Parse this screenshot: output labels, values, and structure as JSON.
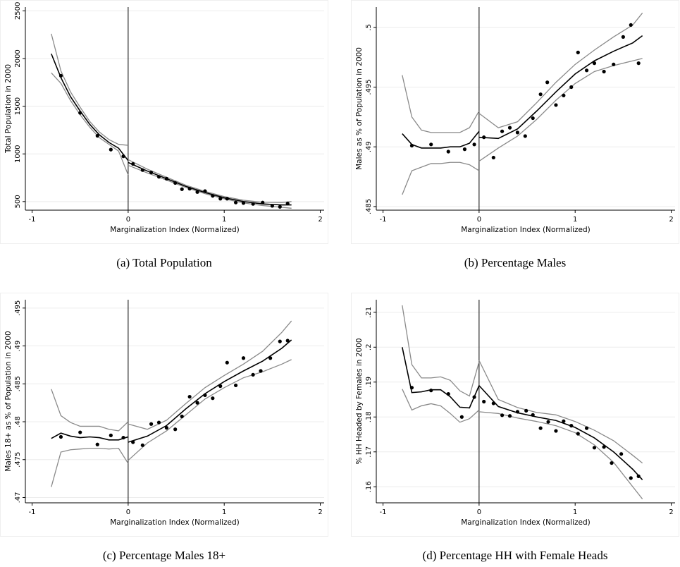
{
  "chart_data": [
    {
      "type": "rd",
      "caption": "(a)  Total Population",
      "xlabel": "Marginalization Index (Normalized)",
      "ylabel": "Total Population in 2000",
      "xlim": [
        -1.07,
        2.04
      ],
      "xticks": [
        -1,
        0,
        1,
        2
      ],
      "ylim": [
        410,
        2540
      ],
      "yticks": [
        500,
        1000,
        1500,
        2000,
        2500
      ],
      "grid": true,
      "cutoff": 0,
      "point_color": "#000000",
      "fit_color": "#000000",
      "ci_color": "#8a8a8a",
      "points": {
        "x": [
          -0.7,
          -0.5,
          -0.32,
          -0.18,
          -0.05,
          0.05,
          0.15,
          0.24,
          0.32,
          0.4,
          0.49,
          0.56,
          0.64,
          0.72,
          0.8,
          0.88,
          0.96,
          1.03,
          1.12,
          1.2,
          1.3,
          1.4,
          1.5,
          1.58,
          1.66
        ],
        "values": [
          1820,
          1430,
          1190,
          1045,
          975,
          895,
          830,
          805,
          760,
          740,
          695,
          630,
          635,
          600,
          610,
          560,
          530,
          530,
          490,
          485,
          475,
          490,
          455,
          445,
          480
        ]
      },
      "fit": [
        {
          "x": [
            -0.8,
            -0.7,
            -0.6,
            -0.5,
            -0.4,
            -0.3,
            -0.2,
            -0.1,
            0
          ],
          "values": [
            2050,
            1800,
            1600,
            1450,
            1310,
            1200,
            1120,
            1060,
            930
          ],
          "lower": [
            1850,
            1740,
            1560,
            1410,
            1280,
            1170,
            1100,
            1030,
            780
          ],
          "upper": [
            2260,
            1870,
            1650,
            1490,
            1340,
            1230,
            1150,
            1100,
            1090
          ]
        },
        {
          "x": [
            0,
            0.2,
            0.4,
            0.6,
            0.8,
            1.0,
            1.2,
            1.4,
            1.6,
            1.7
          ],
          "values": [
            910,
            820,
            740,
            660,
            595,
            540,
            500,
            475,
            465,
            465
          ],
          "lower": [
            880,
            800,
            725,
            648,
            583,
            528,
            486,
            458,
            440,
            430
          ],
          "upper": [
            940,
            840,
            755,
            672,
            607,
            552,
            514,
            492,
            490,
            500
          ]
        }
      ]
    },
    {
      "type": "rd",
      "caption": "(b)  Percentage Males",
      "xlabel": "Marginalization Index (Normalized)",
      "ylabel": "Males as % of Population in 2000",
      "xlim": [
        -1.07,
        2.04
      ],
      "xticks": [
        -1,
        0,
        1,
        2
      ],
      "ylim": [
        0.4847,
        0.5017
      ],
      "yticks": [
        {
          "value": 0.485,
          "label": ".485"
        },
        {
          "value": 0.49,
          "label": ".49"
        },
        {
          "value": 0.495,
          "label": ".495"
        },
        {
          "value": 0.5,
          "label": ".5"
        }
      ],
      "grid": true,
      "cutoff": 0,
      "point_color": "#000000",
      "fit_color": "#000000",
      "ci_color": "#8a8a8a",
      "points": {
        "x": [
          -0.7,
          -0.5,
          -0.32,
          -0.15,
          -0.05,
          0.05,
          0.15,
          0.24,
          0.32,
          0.4,
          0.48,
          0.56,
          0.64,
          0.71,
          0.8,
          0.88,
          0.96,
          1.03,
          1.12,
          1.2,
          1.3,
          1.4,
          1.5,
          1.58,
          1.66
        ],
        "values": [
          0.4901,
          0.4902,
          0.4896,
          0.4898,
          0.4902,
          0.4908,
          0.4891,
          0.4913,
          0.4916,
          0.4912,
          0.4909,
          0.4924,
          0.4944,
          0.4954,
          0.4935,
          0.4943,
          0.495,
          0.4979,
          0.4964,
          0.497,
          0.4963,
          0.4969,
          0.4992,
          0.5002,
          0.497
        ]
      },
      "fit": [
        {
          "x": [
            -0.8,
            -0.7,
            -0.6,
            -0.5,
            -0.4,
            -0.3,
            -0.2,
            -0.1,
            0
          ],
          "values": [
            0.4911,
            0.4902,
            0.4899,
            0.4899,
            0.4899,
            0.49,
            0.49,
            0.4903,
            0.4913
          ],
          "lower": [
            0.486,
            0.488,
            0.4883,
            0.4886,
            0.4886,
            0.4887,
            0.4887,
            0.4885,
            0.488
          ],
          "upper": [
            0.496,
            0.4925,
            0.4914,
            0.4912,
            0.4912,
            0.4912,
            0.4912,
            0.4916,
            0.493
          ]
        },
        {
          "x": [
            0,
            0.2,
            0.4,
            0.6,
            0.8,
            1.0,
            1.2,
            1.4,
            1.6,
            1.7
          ],
          "values": [
            0.4908,
            0.4907,
            0.4915,
            0.493,
            0.4946,
            0.4961,
            0.4972,
            0.498,
            0.4987,
            0.4993
          ],
          "lower": [
            0.4888,
            0.4899,
            0.4909,
            0.4923,
            0.4939,
            0.4953,
            0.4963,
            0.4968,
            0.4972,
            0.4974
          ],
          "upper": [
            0.4928,
            0.4916,
            0.4921,
            0.4937,
            0.4954,
            0.4969,
            0.4981,
            0.4992,
            0.5002,
            0.5012
          ]
        }
      ]
    },
    {
      "type": "rd",
      "caption": "(c)  Percentage Males 18+",
      "xlabel": "Marginalization Index (Normalized)",
      "ylabel": "Males 18+ as % of Population in 2000",
      "xlim": [
        -1.07,
        2.04
      ],
      "xticks": [
        -1,
        0,
        1,
        2
      ],
      "ylim": [
        0.4693,
        0.4961
      ],
      "yticks": [
        {
          "value": 0.47,
          "label": ".47"
        },
        {
          "value": 0.475,
          "label": ".475"
        },
        {
          "value": 0.48,
          "label": ".48"
        },
        {
          "value": 0.485,
          "label": ".485"
        },
        {
          "value": 0.49,
          "label": ".49"
        },
        {
          "value": 0.495,
          "label": ".495"
        }
      ],
      "grid": true,
      "cutoff": 0,
      "point_color": "#000000",
      "fit_color": "#000000",
      "ci_color": "#8a8a8a",
      "points": {
        "x": [
          -0.7,
          -0.5,
          -0.32,
          -0.18,
          -0.05,
          0.05,
          0.15,
          0.24,
          0.32,
          0.4,
          0.49,
          0.56,
          0.64,
          0.72,
          0.8,
          0.88,
          0.96,
          1.03,
          1.12,
          1.2,
          1.3,
          1.38,
          1.48,
          1.58,
          1.66
        ],
        "values": [
          0.478,
          0.4786,
          0.477,
          0.4782,
          0.4779,
          0.4773,
          0.4769,
          0.4797,
          0.4799,
          0.4792,
          0.479,
          0.4807,
          0.4833,
          0.4825,
          0.4835,
          0.4831,
          0.4847,
          0.4878,
          0.4848,
          0.4884,
          0.4862,
          0.4867,
          0.4884,
          0.4906,
          0.4907
        ]
      },
      "fit": [
        {
          "x": [
            -0.8,
            -0.7,
            -0.6,
            -0.5,
            -0.4,
            -0.3,
            -0.2,
            -0.1,
            0
          ],
          "values": [
            0.4778,
            0.4785,
            0.4781,
            0.4779,
            0.478,
            0.4779,
            0.4776,
            0.4776,
            0.478
          ],
          "lower": [
            0.4714,
            0.476,
            0.4763,
            0.4764,
            0.4765,
            0.4765,
            0.4764,
            0.4765,
            0.4745
          ],
          "upper": [
            0.4843,
            0.4808,
            0.4799,
            0.4794,
            0.4794,
            0.4794,
            0.479,
            0.4788,
            0.48
          ]
        },
        {
          "x": [
            0,
            0.2,
            0.4,
            0.6,
            0.8,
            1.0,
            1.2,
            1.4,
            1.6,
            1.7
          ],
          "values": [
            0.4773,
            0.4781,
            0.4795,
            0.4817,
            0.4837,
            0.4853,
            0.4867,
            0.488,
            0.4897,
            0.4908
          ],
          "lower": [
            0.4749,
            0.4772,
            0.4788,
            0.4809,
            0.483,
            0.4845,
            0.4858,
            0.4866,
            0.4876,
            0.4882
          ],
          "upper": [
            0.4797,
            0.479,
            0.4802,
            0.4824,
            0.4845,
            0.4861,
            0.4876,
            0.4893,
            0.4918,
            0.4933
          ]
        }
      ]
    },
    {
      "type": "rd",
      "caption": "(d)  Percentage HH with Female Heads",
      "xlabel": "Marginalization Index (Normalized)",
      "ylabel": "% HH Headed by Females in 2000",
      "xlim": [
        -1.07,
        2.04
      ],
      "xticks": [
        -1,
        0,
        1,
        2
      ],
      "ylim": [
        0.1554,
        0.2136
      ],
      "yticks": [
        {
          "value": 0.16,
          "label": ".16"
        },
        {
          "value": 0.17,
          "label": ".17"
        },
        {
          "value": 0.18,
          "label": ".18"
        },
        {
          "value": 0.19,
          "label": ".19"
        },
        {
          "value": 0.2,
          "label": ".2"
        },
        {
          "value": 0.21,
          "label": ".21"
        }
      ],
      "grid": true,
      "cutoff": 0,
      "point_color": "#000000",
      "fit_color": "#000000",
      "ci_color": "#8a8a8a",
      "points": {
        "x": [
          -0.7,
          -0.5,
          -0.32,
          -0.18,
          -0.05,
          0.05,
          0.15,
          0.24,
          0.32,
          0.4,
          0.49,
          0.56,
          0.64,
          0.72,
          0.8,
          0.88,
          0.96,
          1.03,
          1.12,
          1.2,
          1.3,
          1.38,
          1.48,
          1.58,
          1.66
        ],
        "values": [
          0.1884,
          0.1876,
          0.1866,
          0.18,
          0.1857,
          0.1844,
          0.1839,
          0.1805,
          0.1803,
          0.1815,
          0.1818,
          0.1806,
          0.1768,
          0.1786,
          0.176,
          0.1788,
          0.1775,
          0.1752,
          0.1768,
          0.1712,
          0.1714,
          0.1668,
          0.1694,
          0.1625,
          0.163
        ]
      },
      "fit": [
        {
          "x": [
            -0.8,
            -0.7,
            -0.6,
            -0.5,
            -0.4,
            -0.3,
            -0.2,
            -0.1,
            0
          ],
          "values": [
            0.2,
            0.187,
            0.1872,
            0.1878,
            0.1878,
            0.1858,
            0.1828,
            0.1826,
            0.189
          ],
          "lower": [
            0.188,
            0.182,
            0.1832,
            0.1838,
            0.1832,
            0.181,
            0.1785,
            0.1795,
            0.182
          ],
          "upper": [
            0.212,
            0.195,
            0.1912,
            0.1912,
            0.1915,
            0.1905,
            0.1875,
            0.186,
            0.1958
          ]
        },
        {
          "x": [
            0,
            0.2,
            0.4,
            0.6,
            0.8,
            1.0,
            1.2,
            1.4,
            1.6,
            1.7
          ],
          "values": [
            0.189,
            0.183,
            0.1812,
            0.18,
            0.179,
            0.177,
            0.174,
            0.17,
            0.165,
            0.162
          ],
          "lower": [
            0.1815,
            0.181,
            0.1797,
            0.1787,
            0.1775,
            0.1755,
            0.172,
            0.167,
            0.16,
            0.1565
          ],
          "upper": [
            0.1962,
            0.185,
            0.1827,
            0.1813,
            0.1806,
            0.1787,
            0.1762,
            0.1732,
            0.169,
            0.1668
          ]
        }
      ]
    }
  ]
}
